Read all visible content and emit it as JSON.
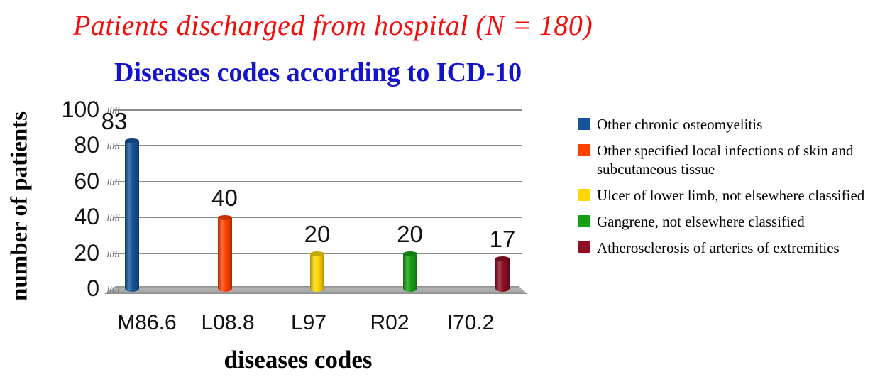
{
  "header": {
    "title": "Patients discharged from hospital (N = 180)"
  },
  "chart_data": {
    "type": "bar",
    "title": "Diseases codes according to ICD-10",
    "xlabel": "diseases codes",
    "ylabel": "number of patients",
    "categories": [
      "M86.6",
      "L08.8",
      "L97",
      "R02",
      "I70.2"
    ],
    "values": [
      83,
      40,
      20,
      20,
      17
    ],
    "bar_colors": [
      "#15539A",
      "#FF4000",
      "#FFD700",
      "#14A014",
      "#8E0E22"
    ],
    "ylim": [
      0,
      100
    ],
    "yticks": [
      0,
      20,
      40,
      60,
      80,
      100
    ],
    "grid": true,
    "data_labels_shown": true,
    "legend_position": "right",
    "legend": [
      {
        "label": "Other chronic osteomyelitis",
        "color": "#15539A"
      },
      {
        "label": "Other specified local infections of skin and subcutaneous tissue",
        "color": "#FF4000"
      },
      {
        "label": "Ulcer of lower limb, not elsewhere classified",
        "color": "#FFD700"
      },
      {
        "label": "Gangrene, not elsewhere classified",
        "color": "#14A014"
      },
      {
        "label": "Atherosclerosis of arteries of extremities",
        "color": "#8E0E22"
      }
    ],
    "colors": {
      "main_title": "#F20D0D",
      "chart_title": "#1313CC",
      "axis_text": "#111111",
      "gridline": "#8C8C8C",
      "floor": "#ACACAC"
    }
  }
}
